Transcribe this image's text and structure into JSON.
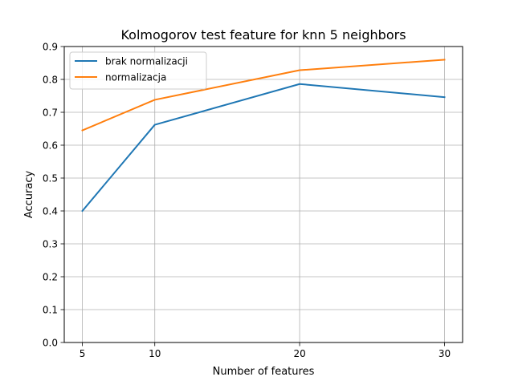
{
  "chart_data": {
    "type": "line",
    "title": "Kolmogorov test feature for knn 5 neighbors",
    "xlabel": "Number of features",
    "ylabel": "Accuracy",
    "x": [
      5,
      10,
      20,
      30
    ],
    "xlim": [
      3.75,
      31.25
    ],
    "ylim": [
      0.0,
      0.9
    ],
    "xticks": [
      5,
      10,
      20,
      30
    ],
    "xtick_labels": [
      "5",
      "10",
      "20",
      "30"
    ],
    "yticks": [
      0.0,
      0.1,
      0.2,
      0.3,
      0.4,
      0.5,
      0.6,
      0.7,
      0.8,
      0.9
    ],
    "ytick_labels": [
      "0.0",
      "0.1",
      "0.2",
      "0.3",
      "0.4",
      "0.5",
      "0.6",
      "0.7",
      "0.8",
      "0.9"
    ],
    "grid": true,
    "legend_position": "top-left",
    "series": [
      {
        "name": "brak normalizacji",
        "color": "#1f77b4",
        "values": [
          0.4,
          0.662,
          0.786,
          0.746
        ]
      },
      {
        "name": "normalizacja",
        "color": "#ff7f0e",
        "values": [
          0.645,
          0.738,
          0.828,
          0.86
        ]
      }
    ]
  }
}
